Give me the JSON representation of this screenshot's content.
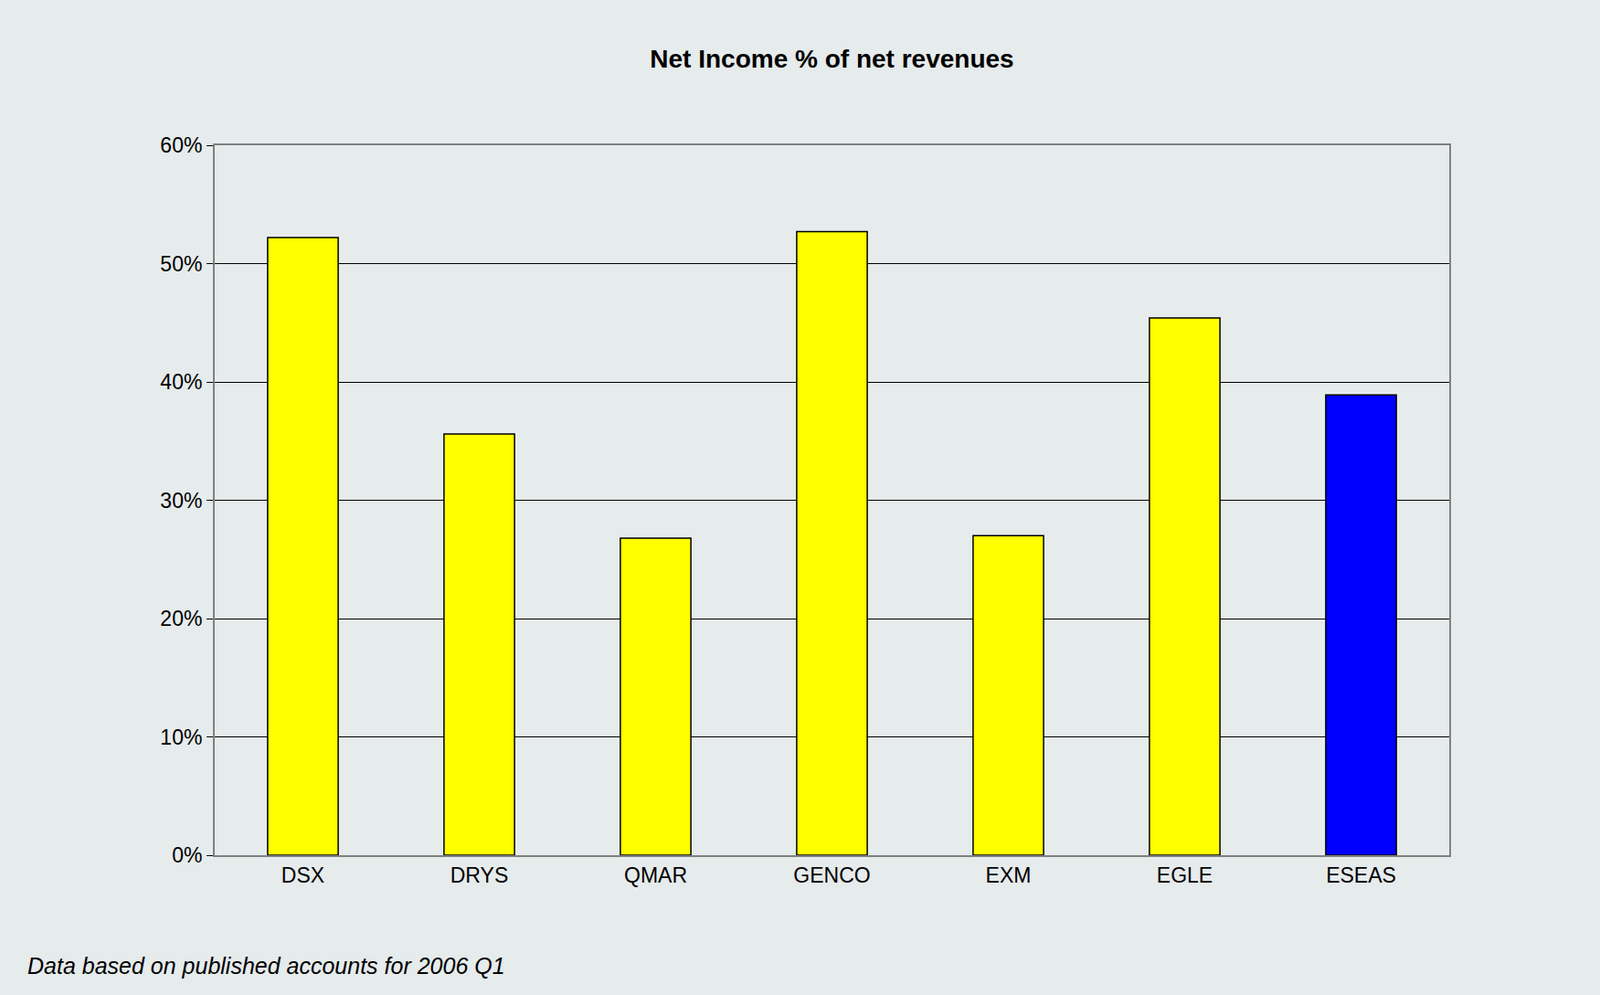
{
  "chart_data": {
    "type": "bar",
    "title": "Net Income % of net revenues",
    "footnote": "Data based on published accounts for 2006 Q1",
    "categories": [
      "DSX",
      "DRYS",
      "QMAR",
      "GENCO",
      "EXM",
      "EGLE",
      "ESEAS"
    ],
    "values": [
      52.2,
      35.6,
      26.8,
      52.7,
      27.0,
      45.4,
      38.9
    ],
    "colors": [
      "#ffff00",
      "#ffff00",
      "#ffff00",
      "#ffff00",
      "#ffff00",
      "#ffff00",
      "#0000ff"
    ],
    "ylim": [
      0,
      60
    ],
    "yticks": [
      {
        "value": 0,
        "label": "0%"
      },
      {
        "value": 10,
        "label": "10%"
      },
      {
        "value": 20,
        "label": "20%"
      },
      {
        "value": 30,
        "label": "30%"
      },
      {
        "value": 40,
        "label": "40%"
      },
      {
        "value": 50,
        "label": "50%"
      },
      {
        "value": 60,
        "label": "60%"
      }
    ],
    "grid": true
  }
}
